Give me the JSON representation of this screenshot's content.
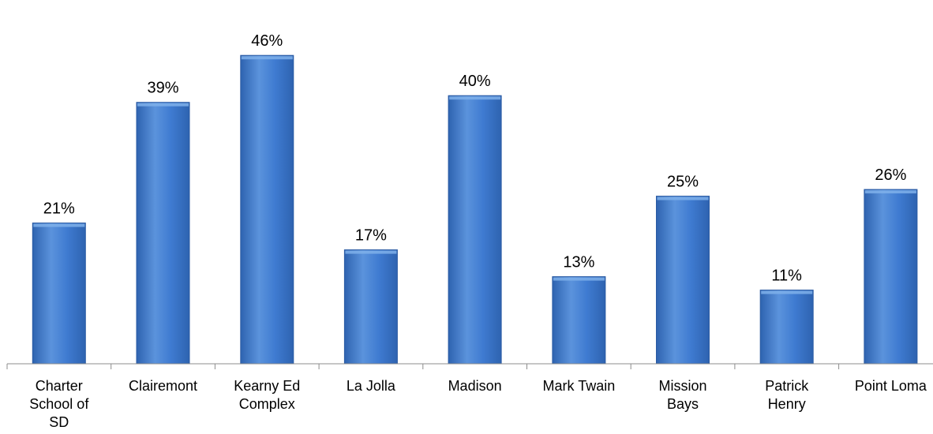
{
  "chart_data": {
    "type": "bar",
    "title": "",
    "xlabel": "",
    "ylabel": "",
    "ylim": [
      0,
      48.5
    ],
    "grid": false,
    "legend": "none",
    "categories": [
      [
        "Charter",
        "School of",
        "SD"
      ],
      [
        "Clairemont"
      ],
      [
        "Kearny Ed",
        "Complex"
      ],
      [
        "La Jolla"
      ],
      [
        "Madison"
      ],
      [
        "Mark Twain"
      ],
      [
        "Mission",
        "Bays"
      ],
      [
        "Patrick",
        "Henry"
      ],
      [
        "Point Loma"
      ]
    ],
    "values": [
      21,
      39,
      46,
      17,
      40,
      13,
      25,
      11,
      26
    ],
    "data_labels": [
      "21%",
      "39%",
      "46%",
      "17%",
      "40%",
      "13%",
      "25%",
      "11%",
      "26%"
    ],
    "colors": {
      "bar_top": "#5b93dc",
      "bar_mid": "#3f7bd1",
      "bar_bottom": "#2e63b0",
      "bar_edge": "#2a5aa3",
      "axis": "#8c8c8c"
    }
  }
}
